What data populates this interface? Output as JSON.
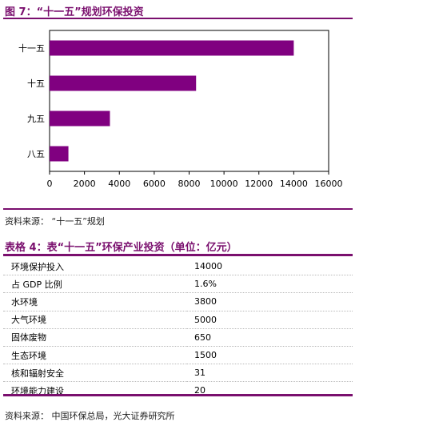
{
  "figure": {
    "title": "图 7：“十一五”规划环保投资",
    "source": "资料来源：  “十一五”规划"
  },
  "chart_data": {
    "type": "bar",
    "orientation": "horizontal",
    "categories": [
      "十一五",
      "十五",
      "九五",
      "八五"
    ],
    "values": [
      14000,
      8400,
      3460,
      1080
    ],
    "xlim": [
      0,
      16000
    ],
    "xticks": [
      "0",
      "2000",
      "4000",
      "6000",
      "8000",
      "10000",
      "12000",
      "14000",
      "16000"
    ],
    "title": "",
    "xlabel": "",
    "ylabel": "",
    "grid": false,
    "bar_color": "#800080"
  },
  "table": {
    "title": "表格 4：表“十一五”环保产业投资（单位：亿元）",
    "rows": [
      {
        "label": "环境保护投入",
        "value": "14000"
      },
      {
        "label": "占 GDP 比例",
        "value": "1.6%"
      },
      {
        "label": "水环境",
        "value": "3800"
      },
      {
        "label": "大气环境",
        "value": "5000"
      },
      {
        "label": "固体废物",
        "value": "650"
      },
      {
        "label": "生态环境",
        "value": "1500"
      },
      {
        "label": "核和辐射安全",
        "value": "31"
      },
      {
        "label": "环境能力建设",
        "value": "20"
      }
    ],
    "source": "资料来源：  中国环保总局，光大证券研究所"
  },
  "colors": {
    "accent": "#7a0f6e",
    "bar": "#800080"
  }
}
